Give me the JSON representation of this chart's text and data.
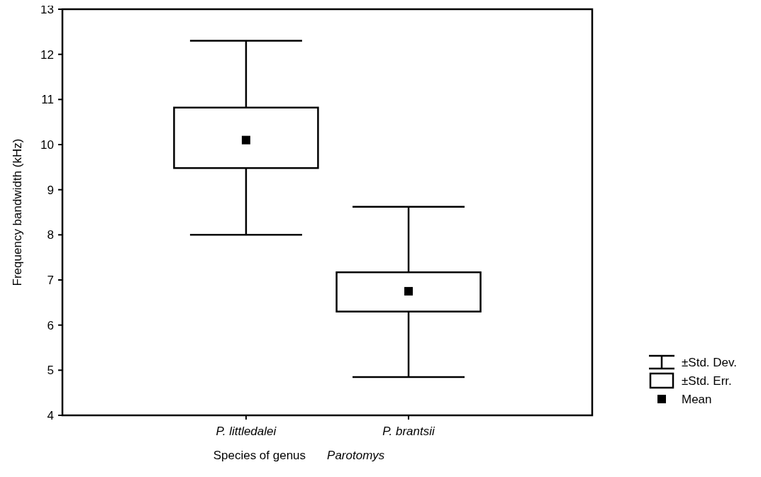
{
  "chart_data": {
    "type": "box",
    "xlabel": "Species of genus Parotomys",
    "ylabel": "Frequency bandwidth (kHz)",
    "categories": [
      "P. littledalei",
      "P. brantsii"
    ],
    "boxes": [
      {
        "low": 8.0,
        "q1": 9.48,
        "q3": 10.82,
        "high": 12.3,
        "mean": 10.1
      },
      {
        "low": 4.85,
        "q1": 6.3,
        "q3": 7.17,
        "high": 8.62,
        "mean": 6.75
      }
    ],
    "color": "#000000",
    "ylim": [
      4,
      13
    ],
    "yticks": [
      4,
      5,
      6,
      7,
      8,
      9,
      10,
      11,
      12,
      13
    ],
    "annotations": [
      "±Std. Dev.",
      "±Std. Err.",
      "Mean"
    ]
  }
}
